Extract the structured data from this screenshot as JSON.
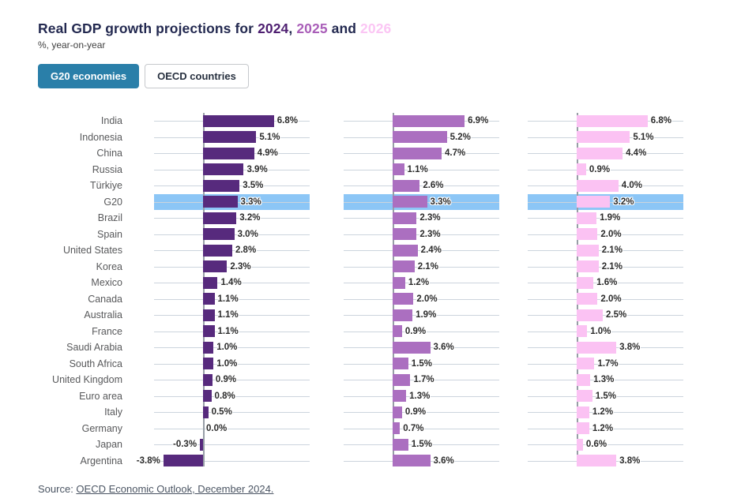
{
  "header": {
    "title_prefix": "Real GDP growth projections for ",
    "sep_comma": ", ",
    "sep_and": " and ",
    "year_2024": "2024",
    "year_2025": "2025",
    "year_2026": "2026",
    "year_colors": {
      "y2024": "#4d1e70",
      "y2025": "#a95eb8",
      "y2026": "#fbc6f4"
    },
    "subtitle": "%, year-on-year"
  },
  "tabs": [
    {
      "label": "G20 economies",
      "active": true
    },
    {
      "label": "OECD countries",
      "active": false
    }
  ],
  "source": {
    "prefix": "Source: ",
    "link_text": "OECD Economic Outlook, December 2024."
  },
  "chart_data": {
    "type": "bar",
    "orientation": "horizontal",
    "value_suffix": "%",
    "categories": [
      "India",
      "Indonesia",
      "China",
      "Russia",
      "Türkiye",
      "G20",
      "Brazil",
      "Spain",
      "United States",
      "Korea",
      "Mexico",
      "Canada",
      "Australia",
      "France",
      "Saudi Arabia",
      "South Africa",
      "United Kingdom",
      "Euro area",
      "Italy",
      "Germany",
      "Japan",
      "Argentina"
    ],
    "highlight_category": "G20",
    "highlight_band_color": "#8cc6f6",
    "series": [
      {
        "name": "2024",
        "color": "#572a7d",
        "values": [
          6.8,
          5.1,
          4.9,
          3.9,
          3.5,
          3.3,
          3.2,
          3.0,
          2.8,
          2.3,
          1.4,
          1.1,
          1.1,
          1.1,
          1.0,
          1.0,
          0.9,
          0.8,
          0.5,
          0.0,
          -0.3,
          -3.8
        ]
      },
      {
        "name": "2025",
        "color": "#ab6fc0",
        "values": [
          6.9,
          5.2,
          4.7,
          1.1,
          2.6,
          3.3,
          2.3,
          2.3,
          2.4,
          2.1,
          1.2,
          2.0,
          1.9,
          0.9,
          3.6,
          1.5,
          1.7,
          1.3,
          0.9,
          0.7,
          1.5,
          3.6
        ]
      },
      {
        "name": "2026",
        "color": "#fbc2f3",
        "values": [
          6.8,
          5.1,
          4.4,
          0.9,
          4.0,
          3.2,
          1.9,
          2.0,
          2.1,
          2.1,
          1.6,
          2.0,
          2.5,
          1.0,
          3.8,
          1.7,
          1.3,
          1.5,
          1.2,
          1.2,
          0.6,
          3.8
        ]
      }
    ],
    "xlim": [
      -4.5,
      10.2
    ],
    "grid": true,
    "legend_position": "in-title"
  }
}
